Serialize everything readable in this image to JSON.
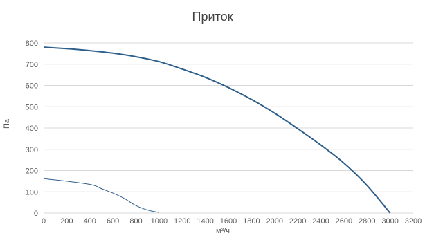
{
  "chart_data": {
    "type": "line",
    "title": "Приток",
    "xlabel": "м³/ч",
    "ylabel": "Па",
    "xlim": [
      0,
      3200
    ],
    "ylim": [
      0,
      800
    ],
    "x_ticks": [
      "0",
      "200",
      "400",
      "600",
      "800",
      "1000",
      "1200",
      "1400",
      "1600",
      "1800",
      "2000",
      "2200",
      "2400",
      "2600",
      "2800",
      "3000",
      "3200"
    ],
    "y_ticks": [
      "0",
      "100",
      "200",
      "300",
      "400",
      "500",
      "600",
      "700",
      "800"
    ],
    "grid": "horizontal",
    "legend": "none",
    "series": [
      {
        "color": "#2e5f8a",
        "x": [
          0,
          200,
          400,
          600,
          800,
          1000,
          1200,
          1400,
          1600,
          1800,
          2000,
          2200,
          2400,
          2600,
          2800,
          3000
        ],
        "y": [
          780,
          773,
          764,
          752,
          735,
          712,
          677,
          638,
          590,
          534,
          470,
          397,
          320,
          235,
          130,
          0
        ]
      },
      {
        "color": "#2e5f8a",
        "x": [
          0,
          100,
          200,
          300,
          400,
          450,
          500,
          600,
          700,
          800,
          900,
          1000
        ],
        "y": [
          162,
          156,
          150,
          143,
          135,
          128,
          115,
          94,
          68,
          35,
          14,
          3
        ]
      }
    ]
  }
}
